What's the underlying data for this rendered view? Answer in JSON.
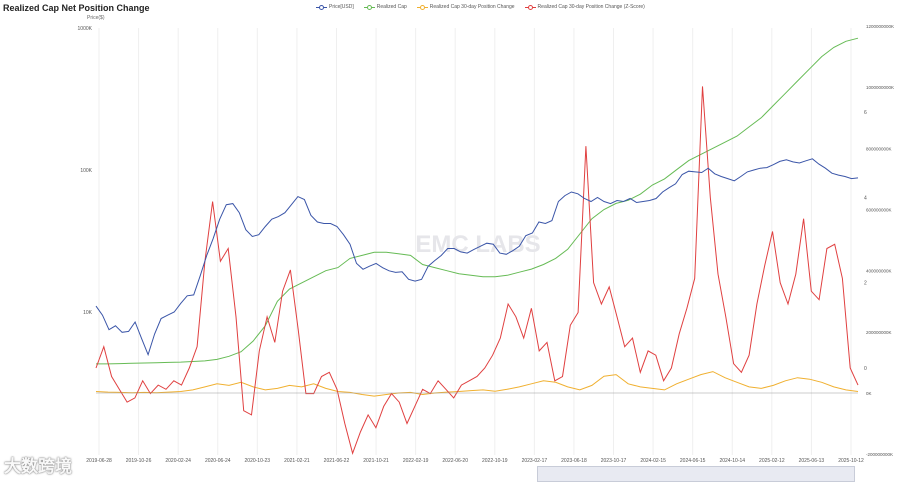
{
  "header": {
    "title": "Realized Cap Net Position Change",
    "price_unit": "Price($)"
  },
  "watermark": {
    "brand": "EMC LABS",
    "corner_logo": "大数跨境"
  },
  "legend": [
    {
      "label": "Price[USD]",
      "color": "#3a55a8"
    },
    {
      "label": "Realized Cap",
      "color": "#66bb55"
    },
    {
      "label": "Realized Cap 30-day Position Change",
      "color": "#f0b030"
    },
    {
      "label": "Realized Cap 30-day Position Change (Z-Score)",
      "color": "#e04040"
    }
  ],
  "chart_data": {
    "type": "line",
    "title": "Realized Cap Net Position Change",
    "x_ticks": [
      "2019-06-28",
      "2019-10-26",
      "2020-02-24",
      "2020-06-24",
      "2020-10-23",
      "2021-02-21",
      "2021-06-22",
      "2021-10-21",
      "2022-02-19",
      "2022-06-20",
      "2022-10-19",
      "2023-02-17",
      "2023-06-18",
      "2023-10-17",
      "2024-02-15",
      "2024-06-15",
      "2024-10-14",
      "2025-02-12",
      "2025-06-13",
      "2025-10-12"
    ],
    "y_left": {
      "label": "Price($)",
      "scale": "log",
      "ticks": [
        "10K",
        "100K",
        "1000K"
      ]
    },
    "y_right_zscore": {
      "ticks": [
        "0",
        "2",
        "4",
        "6"
      ]
    },
    "y_right_cap": {
      "ticks": [
        "-200000000K",
        "0K",
        "200000000K",
        "400000000K",
        "600000000K",
        "800000000K",
        "1000000000K",
        "1200000000K"
      ]
    },
    "grid": "vertical",
    "legend_position": "top-center",
    "series": [
      {
        "name": "Price[USD]",
        "color": "#3a55a8",
        "axis": "left-log",
        "values": [
          11000,
          9500,
          7500,
          8000,
          7200,
          7300,
          8500,
          6500,
          5000,
          7000,
          9000,
          9500,
          10000,
          11500,
          13000,
          13200,
          18000,
          25000,
          33000,
          45000,
          57000,
          58000,
          50000,
          38000,
          34000,
          35000,
          40000,
          45000,
          47000,
          50000,
          57000,
          65000,
          62000,
          48000,
          43000,
          42000,
          42000,
          40000,
          35000,
          30000,
          22000,
          20000,
          21000,
          22000,
          20500,
          19500,
          19000,
          19200,
          17000,
          16500,
          17000,
          21000,
          23000,
          25000,
          28000,
          28000,
          26500,
          26000,
          27500,
          29000,
          30500,
          30000,
          26000,
          25500,
          27000,
          29000,
          34500,
          36000,
          43000,
          42000,
          44000,
          60000,
          66000,
          70000,
          68000,
          63000,
          60000,
          64000,
          60000,
          58000,
          61000,
          60000,
          63000,
          59000,
          60000,
          61000,
          63000,
          70000,
          75000,
          80000,
          93000,
          98000,
          97000,
          96000,
          103000,
          94000,
          90000,
          87000,
          84000,
          90000,
          97000,
          100000,
          103000,
          104000,
          109000,
          115000,
          118000,
          114000,
          112000,
          116000,
          120000,
          110000,
          103000,
          95000,
          92000,
          90000,
          87000,
          88000
        ],
        "x_range": [
          0,
          1
        ]
      },
      {
        "name": "Realized Cap",
        "color": "#66bb55",
        "axis": "right-cap",
        "points_note": "values in K (thousands USD)",
        "values": [
          95000000,
          95000000,
          96000000,
          97000000,
          98000000,
          99000000,
          100000000,
          101000000,
          103000000,
          105000000,
          110000000,
          120000000,
          135000000,
          170000000,
          220000000,
          300000000,
          340000000,
          360000000,
          380000000,
          400000000,
          410000000,
          440000000,
          450000000,
          460000000,
          460000000,
          455000000,
          450000000,
          420000000,
          410000000,
          400000000,
          390000000,
          385000000,
          380000000,
          380000000,
          385000000,
          395000000,
          405000000,
          420000000,
          440000000,
          470000000,
          520000000,
          570000000,
          600000000,
          620000000,
          630000000,
          650000000,
          680000000,
          700000000,
          730000000,
          760000000,
          780000000,
          800000000,
          820000000,
          840000000,
          870000000,
          900000000,
          940000000,
          980000000,
          1020000000,
          1060000000,
          1100000000,
          1130000000,
          1150000000,
          1160000000
        ]
      },
      {
        "name": "Realized Cap 30-day Position Change",
        "color": "#f0b030",
        "axis": "right-cap",
        "values": [
          5000000,
          3000000,
          2000000,
          1000000,
          2000000,
          1000000,
          3000000,
          5000000,
          10000000,
          20000000,
          30000000,
          25000000,
          35000000,
          20000000,
          10000000,
          15000000,
          25000000,
          20000000,
          30000000,
          15000000,
          5000000,
          2000000,
          -5000000,
          -10000000,
          -5000000,
          0,
          2000000,
          -5000000,
          0,
          3000000,
          5000000,
          8000000,
          10000000,
          6000000,
          12000000,
          20000000,
          30000000,
          40000000,
          35000000,
          20000000,
          10000000,
          25000000,
          55000000,
          60000000,
          30000000,
          20000000,
          15000000,
          10000000,
          30000000,
          45000000,
          60000000,
          70000000,
          50000000,
          35000000,
          20000000,
          15000000,
          25000000,
          40000000,
          50000000,
          45000000,
          35000000,
          20000000,
          10000000,
          5000000
        ]
      },
      {
        "name": "Realized Cap 30-day Position Change (Z-Score)",
        "color": "#e04040",
        "axis": "right-z",
        "values": [
          0,
          0.5,
          -0.2,
          -0.5,
          -0.8,
          -0.7,
          -0.3,
          -0.6,
          -0.4,
          -0.5,
          -0.3,
          -0.4,
          0,
          0.5,
          2.5,
          3.9,
          2.5,
          2.8,
          1.2,
          -1.0,
          -1.1,
          0.4,
          1.2,
          0.6,
          1.8,
          2.3,
          0.9,
          -0.6,
          -0.6,
          -0.2,
          -0.1,
          -0.5,
          -1.3,
          -2.0,
          -1.5,
          -1.1,
          -1.4,
          -0.9,
          -0.6,
          -0.8,
          -1.3,
          -0.9,
          -0.5,
          -0.6,
          -0.3,
          -0.5,
          -0.7,
          -0.4,
          -0.3,
          -0.2,
          0,
          0.3,
          0.7,
          1.5,
          1.2,
          0.7,
          1.4,
          0.4,
          0.6,
          -0.3,
          -0.2,
          1.0,
          1.3,
          5.2,
          2.0,
          1.5,
          1.9,
          1.2,
          0.5,
          0.7,
          -0.1,
          0.4,
          0.3,
          -0.3,
          0.0,
          0.8,
          1.4,
          2.1,
          6.6,
          4.0,
          2.2,
          1.2,
          0.1,
          -0.1,
          0.3,
          1.5,
          2.4,
          3.2,
          2.0,
          1.5,
          2.2,
          3.5,
          1.8,
          1.6,
          2.8,
          2.9,
          2.1,
          0.0,
          -0.4
        ]
      }
    ]
  }
}
